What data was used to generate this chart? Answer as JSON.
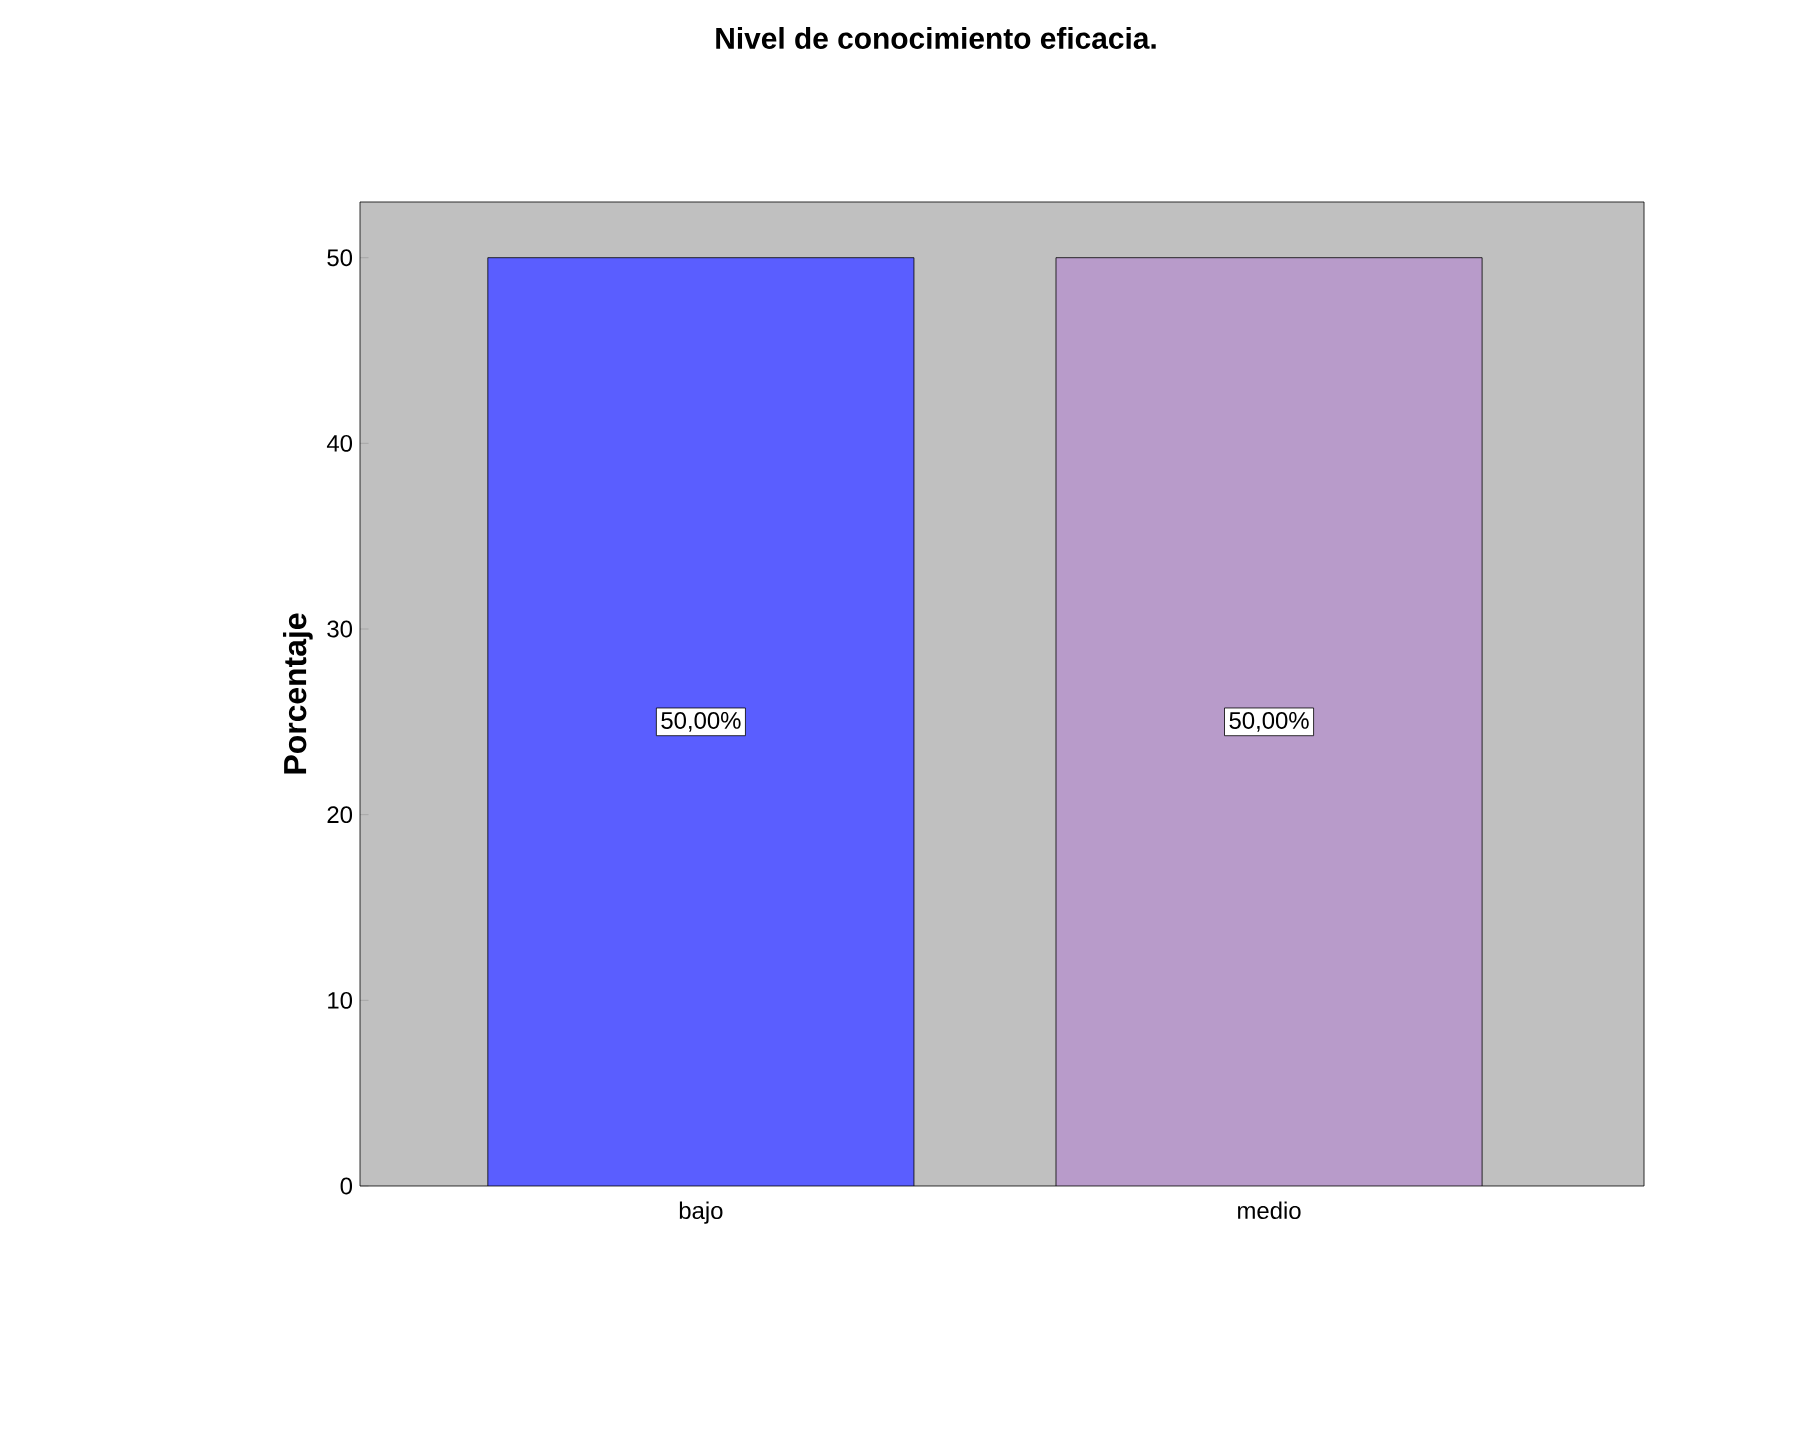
{
  "chart_data": {
    "type": "bar",
    "title": "Nivel de conocimiento eficacia.",
    "ylabel": "Porcentaje",
    "categories": [
      "bajo",
      "medio"
    ],
    "values": [
      50,
      50
    ],
    "colors": [
      "#5a5eff",
      "#b89bca"
    ],
    "value_labels": [
      "50,00%",
      "50,00%"
    ],
    "ylim": [
      0,
      53
    ],
    "yticks": [
      0,
      10,
      20,
      30,
      40,
      50
    ],
    "grid": false
  }
}
